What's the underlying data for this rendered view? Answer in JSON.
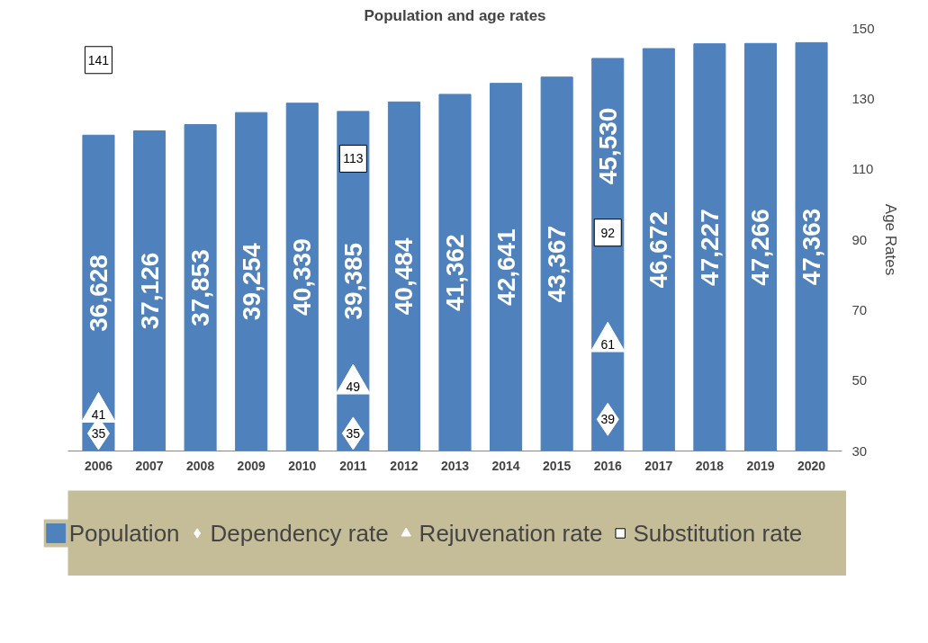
{
  "chart_data": {
    "type": "bar",
    "title": "Population and age rates",
    "y2label": "Age Rates",
    "categories": [
      "2006",
      "2007",
      "2008",
      "2009",
      "2010",
      "2011",
      "2012",
      "2013",
      "2014",
      "2015",
      "2016",
      "2017",
      "2018",
      "2019",
      "2020"
    ],
    "y2lim": [
      30,
      150
    ],
    "y2ticks": [
      30,
      50,
      70,
      90,
      110,
      130,
      150
    ],
    "grid": false,
    "legend": "bottom",
    "series": [
      {
        "name": "Population",
        "color": "#4f81bd",
        "values": [
          36628,
          37126,
          37853,
          39254,
          40339,
          39385,
          40484,
          41362,
          42641,
          43367,
          45530,
          46672,
          47227,
          47266,
          47363
        ],
        "value_labels": [
          "36,628",
          "37,126",
          "37,853",
          "39,254",
          "40,339",
          "39,385",
          "40,484",
          "41,362",
          "42,641",
          "43,367",
          "45,530",
          "46,672",
          "47,227",
          "47,266",
          "47,363"
        ]
      },
      {
        "name": "Dependency rate",
        "type": "scatter",
        "axis": "y2",
        "marker": "diamond",
        "color": "#ffffff",
        "data_labels": true,
        "values": [
          35,
          null,
          null,
          null,
          null,
          35,
          null,
          null,
          null,
          null,
          39,
          null,
          null,
          null,
          null
        ]
      },
      {
        "name": "Rejuvenation rate",
        "type": "scatter",
        "axis": "y2",
        "marker": "triangle",
        "color": "#ffffff",
        "data_labels": true,
        "values": [
          41,
          null,
          null,
          null,
          null,
          49,
          null,
          null,
          null,
          null,
          61,
          null,
          null,
          null,
          null
        ]
      },
      {
        "name": "Substitution rate",
        "type": "scatter",
        "axis": "y2",
        "marker": "square",
        "color": "#ffffff",
        "data_labels": true,
        "values": [
          141,
          null,
          null,
          null,
          null,
          113,
          null,
          null,
          null,
          null,
          92,
          null,
          null,
          null,
          null
        ]
      }
    ]
  }
}
